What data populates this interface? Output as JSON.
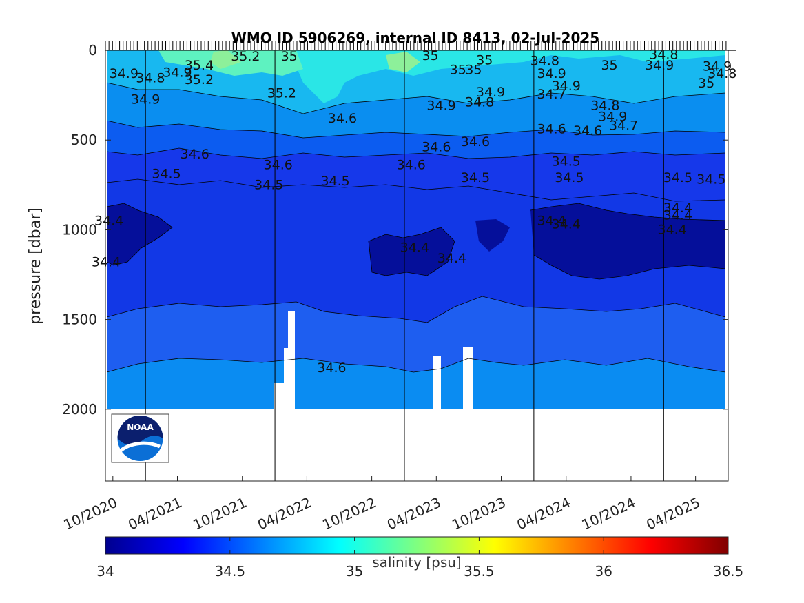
{
  "chart_data": {
    "type": "heatmap",
    "title": "WMO ID 5906269, internal ID 8413, 02-Jul-2025",
    "ylabel": "pressure [dbar]",
    "ylim": [
      2400,
      0
    ],
    "y_reversed": true,
    "yticks": [
      0,
      500,
      1000,
      1500,
      2000
    ],
    "x_range": [
      "2020-09-10",
      "2025-07-02"
    ],
    "xticks": [
      "10/2020",
      "04/2021",
      "10/2021",
      "04/2022",
      "10/2022",
      "04/2023",
      "10/2023",
      "04/2024",
      "10/2024",
      "04/2025"
    ],
    "xtick_dates": [
      "2020-10-01",
      "2021-04-01",
      "2021-10-01",
      "2022-04-01",
      "2022-10-01",
      "2023-04-01",
      "2023-10-01",
      "2024-04-01",
      "2024-10-01",
      "2025-04-01"
    ],
    "colorbar": {
      "label": "salinity [psu]",
      "range": [
        34,
        36.5
      ],
      "ticks": [
        "34",
        "34.5",
        "35",
        "35.5",
        "36",
        "36.5"
      ],
      "colormap": "jet"
    },
    "vertical_lines": [
      "2021-01-01",
      "2022-01-01",
      "2023-01-01",
      "2024-01-01",
      "2025-01-01"
    ],
    "contour_labels": [
      {
        "text": "34.8",
        "date": "2021-01-15",
        "p": 155
      },
      {
        "text": "34.9",
        "date": "2020-11-01",
        "p": 130
      },
      {
        "text": "35.2",
        "date": "2021-10-10",
        "p": 35
      },
      {
        "text": "35",
        "date": "2022-02-10",
        "p": 35
      },
      {
        "text": "35.2",
        "date": "2022-01-20",
        "p": 240
      },
      {
        "text": "34.6",
        "date": "2021-05-20",
        "p": 580
      },
      {
        "text": "34.5",
        "date": "2021-03-01",
        "p": 690
      },
      {
        "text": "34.4",
        "date": "2020-09-20",
        "p": 950
      },
      {
        "text": "34.4",
        "date": "2020-09-12",
        "p": 1180
      },
      {
        "text": "34.6",
        "date": "2022-01-10",
        "p": 640
      },
      {
        "text": "34.5",
        "date": "2021-12-15",
        "p": 750
      },
      {
        "text": "34.6",
        "date": "2022-07-10",
        "p": 380
      },
      {
        "text": "34.5",
        "date": "2022-06-20",
        "p": 730
      },
      {
        "text": "34.6",
        "date": "2023-01-20",
        "p": 640
      },
      {
        "text": "34.4",
        "date": "2023-01-30",
        "p": 1100
      },
      {
        "text": "34.4",
        "date": "2023-05-15",
        "p": 1160
      },
      {
        "text": "34.6",
        "date": "2022-06-10",
        "p": 1770
      },
      {
        "text": "34.6",
        "date": "2023-04-01",
        "p": 540
      },
      {
        "text": "34.9",
        "date": "2023-04-15",
        "p": 310
      },
      {
        "text": "34.6",
        "date": "2023-07-20",
        "p": 510
      },
      {
        "text": "34.5",
        "date": "2023-07-20",
        "p": 710
      },
      {
        "text": "34.8",
        "date": "2023-08-01",
        "p": 290
      },
      {
        "text": "34.9",
        "date": "2023-09-01",
        "p": 235
      },
      {
        "text": "35",
        "date": "2023-06-01",
        "p": 110
      },
      {
        "text": "34.8",
        "date": "2024-02-01",
        "p": 60
      },
      {
        "text": "34.9",
        "date": "2024-02-20",
        "p": 130
      },
      {
        "text": "34.7",
        "date": "2024-02-20",
        "p": 245
      },
      {
        "text": "34.9",
        "date": "2024-04-01",
        "p": 200
      },
      {
        "text": "34.6",
        "date": "2024-02-20",
        "p": 440
      },
      {
        "text": "34.6",
        "date": "2024-06-01",
        "p": 450
      },
      {
        "text": "34.8",
        "date": "2024-07-20",
        "p": 310
      },
      {
        "text": "34.9",
        "date": "2024-08-10",
        "p": 370
      },
      {
        "text": "34.7",
        "date": "2024-09-10",
        "p": 420
      },
      {
        "text": "35",
        "date": "2024-08-01",
        "p": 85
      },
      {
        "text": "34.9",
        "date": "2024-12-20",
        "p": 85
      },
      {
        "text": "34.8",
        "date": "2025-01-01",
        "p": 25
      },
      {
        "text": "34.5",
        "date": "2024-04-01",
        "p": 620
      },
      {
        "text": "34.5",
        "date": "2024-04-10",
        "p": 710
      },
      {
        "text": "34.4",
        "date": "2024-02-20",
        "p": 950
      },
      {
        "text": "34.4",
        "date": "2024-04-01",
        "p": 970
      },
      {
        "text": "34.4",
        "date": "2025-02-10",
        "p": 880
      },
      {
        "text": "34.4",
        "date": "2025-02-10",
        "p": 920
      },
      {
        "text": "34.4",
        "date": "2025-01-25",
        "p": 1000
      },
      {
        "text": "34.5",
        "date": "2025-02-10",
        "p": 710
      },
      {
        "text": "34.5",
        "date": "2025-05-15",
        "p": 720
      },
      {
        "text": "34.9",
        "date": "2025-06-01",
        "p": 90
      },
      {
        "text": "34.8",
        "date": "2025-06-15",
        "p": 130
      },
      {
        "text": "35",
        "date": "2025-05-01",
        "p": 185
      },
      {
        "text": "35.4",
        "date": "2021-06-01",
        "p": 85
      },
      {
        "text": "35.2",
        "date": "2021-06-01",
        "p": 165
      },
      {
        "text": "34.9",
        "date": "2021-04-01",
        "p": 125
      },
      {
        "text": "34.9",
        "date": "2021-01-01",
        "p": 275
      },
      {
        "text": "35",
        "date": "2023-03-15",
        "p": 30
      },
      {
        "text": "35",
        "date": "2023-07-15",
        "p": 110
      },
      {
        "text": "35",
        "date": "2023-08-15",
        "p": 55
      }
    ]
  },
  "logo": {
    "text": "NOAA",
    "icon": "noaa-logo-icon"
  },
  "colors": {
    "ocean_deep": "#0a1a9a",
    "grid_line": "#000000"
  }
}
